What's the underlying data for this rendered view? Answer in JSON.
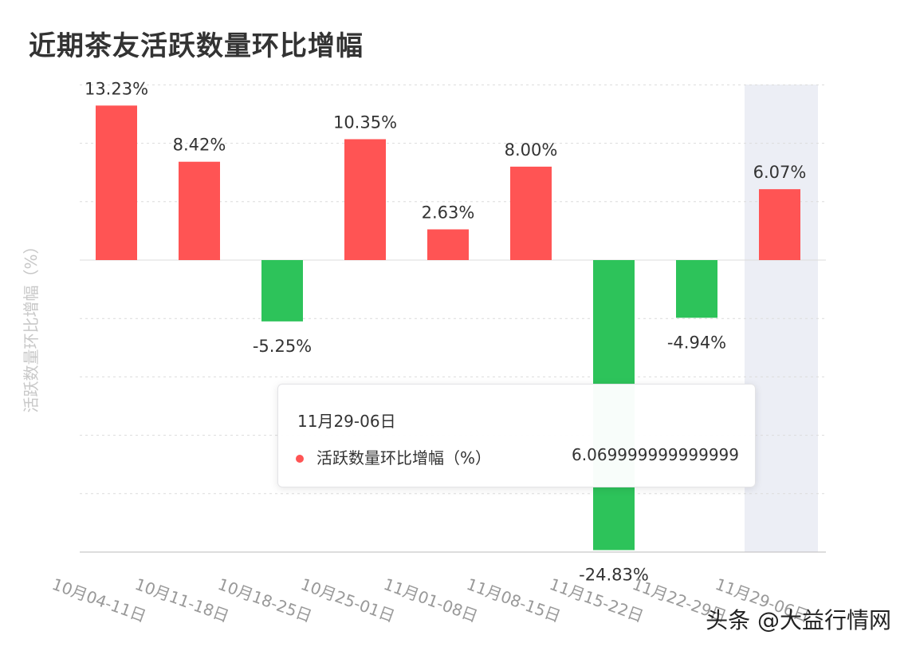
{
  "title": "近期茶友活跃数量环比增幅",
  "colors": {
    "positive": "#ff5454",
    "negative": "#2dc35a",
    "highlight": "#eceef5",
    "grid": "#dcdcdc",
    "axis_text": "#999999",
    "label_text": "#333333"
  },
  "chart_data": {
    "type": "bar",
    "title": "近期茶友活跃数量环比增幅",
    "ylabel": "活跃数量环比增幅（%）",
    "xlabel": "",
    "categories": [
      "10月04-11日",
      "10月11-18日",
      "10月18-25日",
      "10月25-01日",
      "11月01-08日",
      "11月08-15日",
      "11月15-22日",
      "11月22-29日",
      "11月29-06日"
    ],
    "series": [
      {
        "name": "活跃数量环比增幅（%）",
        "values": [
          13.23,
          8.42,
          -5.25,
          10.35,
          2.63,
          8.0,
          -24.83,
          -4.94,
          6.07
        ]
      }
    ],
    "data_labels": [
      "13.23%",
      "8.42%",
      "-5.25%",
      "10.35%",
      "2.63%",
      "8.00%",
      "-24.83%",
      "-4.94%",
      "6.07%"
    ],
    "ylim": [
      -25,
      15
    ],
    "grid": true,
    "legend": "none",
    "highlighted_category": "11月29-06日"
  },
  "tooltip": {
    "title": "11月29-06日",
    "series_label": "活跃数量环比增幅（%）",
    "value": "6.069999999999999"
  },
  "watermark": "头条 @大益行情网"
}
